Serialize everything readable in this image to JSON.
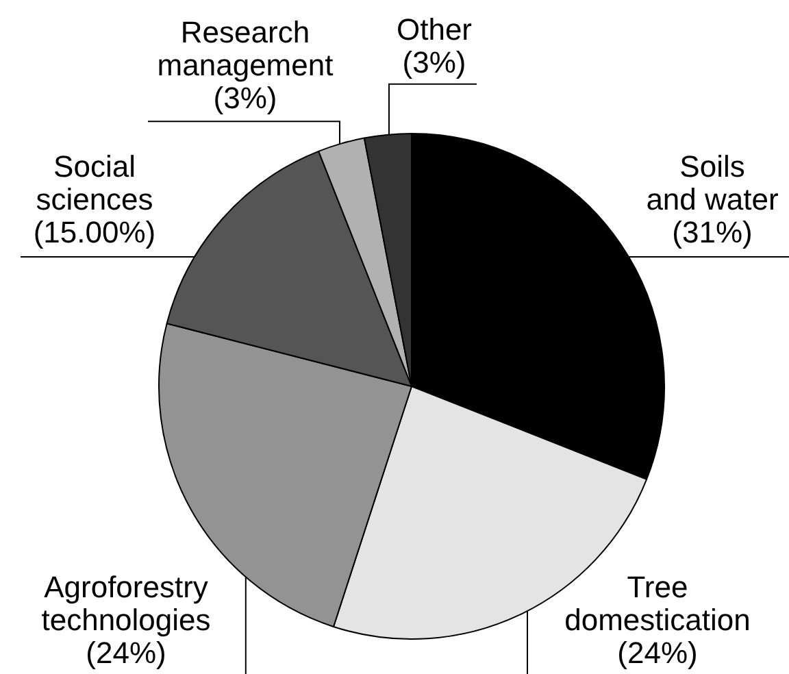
{
  "chart_data": {
    "type": "pie",
    "categories": [
      "Soils and water",
      "Tree domestication",
      "Agroforestry technologies",
      "Social sciences",
      "Research management",
      "Other"
    ],
    "values": [
      31,
      24,
      24,
      15,
      3,
      3
    ],
    "colors": [
      "#000000",
      "#e4e4e4",
      "#939393",
      "#555555",
      "#b1b1b1",
      "#333333"
    ],
    "value_labels": [
      "(31%)",
      "(24%)",
      "(24%)",
      "(15.00%)",
      "(3%)",
      "(3%)"
    ]
  }
}
